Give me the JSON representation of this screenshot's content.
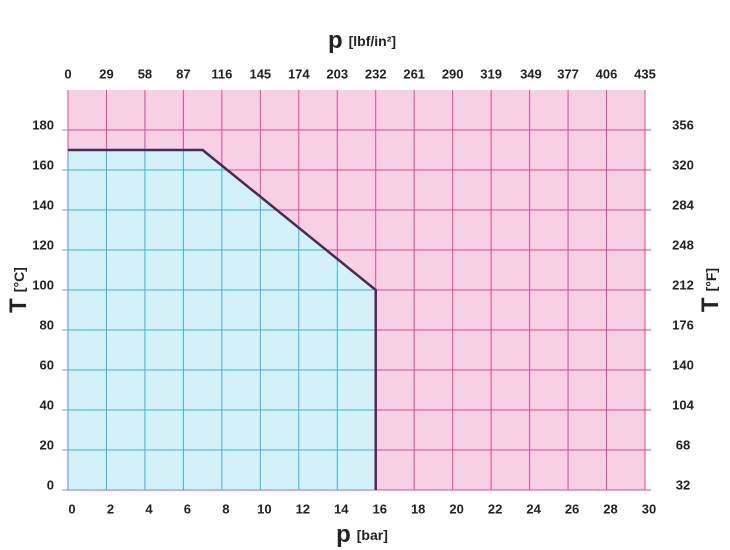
{
  "chart_data": {
    "type": "area",
    "x_label": {
      "symbol": "p",
      "unit": "[bar]"
    },
    "x2_label": {
      "symbol": "p",
      "unit": "[lbf/in²]"
    },
    "y_label": {
      "symbol": "T",
      "unit": "[°C]"
    },
    "y2_label": {
      "symbol": "T",
      "unit": "[°F]"
    },
    "x": [
      0,
      7,
      16,
      16
    ],
    "values": [
      170,
      170,
      100,
      0
    ],
    "color": "#4b2a55",
    "fill_color": "#d4f0f8",
    "background_color": "#f8d0e4",
    "grid": true,
    "grid_color": "#e0449c",
    "grid_color_inside": "#3ab4d6",
    "xlim": [
      0,
      30
    ],
    "xticks": [
      0,
      2,
      4,
      6,
      8,
      10,
      12,
      14,
      16,
      18,
      20,
      22,
      24,
      26,
      28,
      30
    ],
    "x2lim": [
      0,
      435
    ],
    "x2ticks": [
      0,
      29,
      58,
      87,
      116,
      145,
      174,
      203,
      232,
      261,
      290,
      319,
      349,
      377,
      406,
      435
    ],
    "ylim": [
      0,
      200
    ],
    "yticks": [
      0,
      20,
      40,
      60,
      80,
      100,
      120,
      140,
      160,
      180
    ],
    "y2lim": [
      32,
      392
    ],
    "y2ticks": [
      32,
      68,
      104,
      140,
      176,
      212,
      248,
      284,
      320,
      356
    ]
  }
}
